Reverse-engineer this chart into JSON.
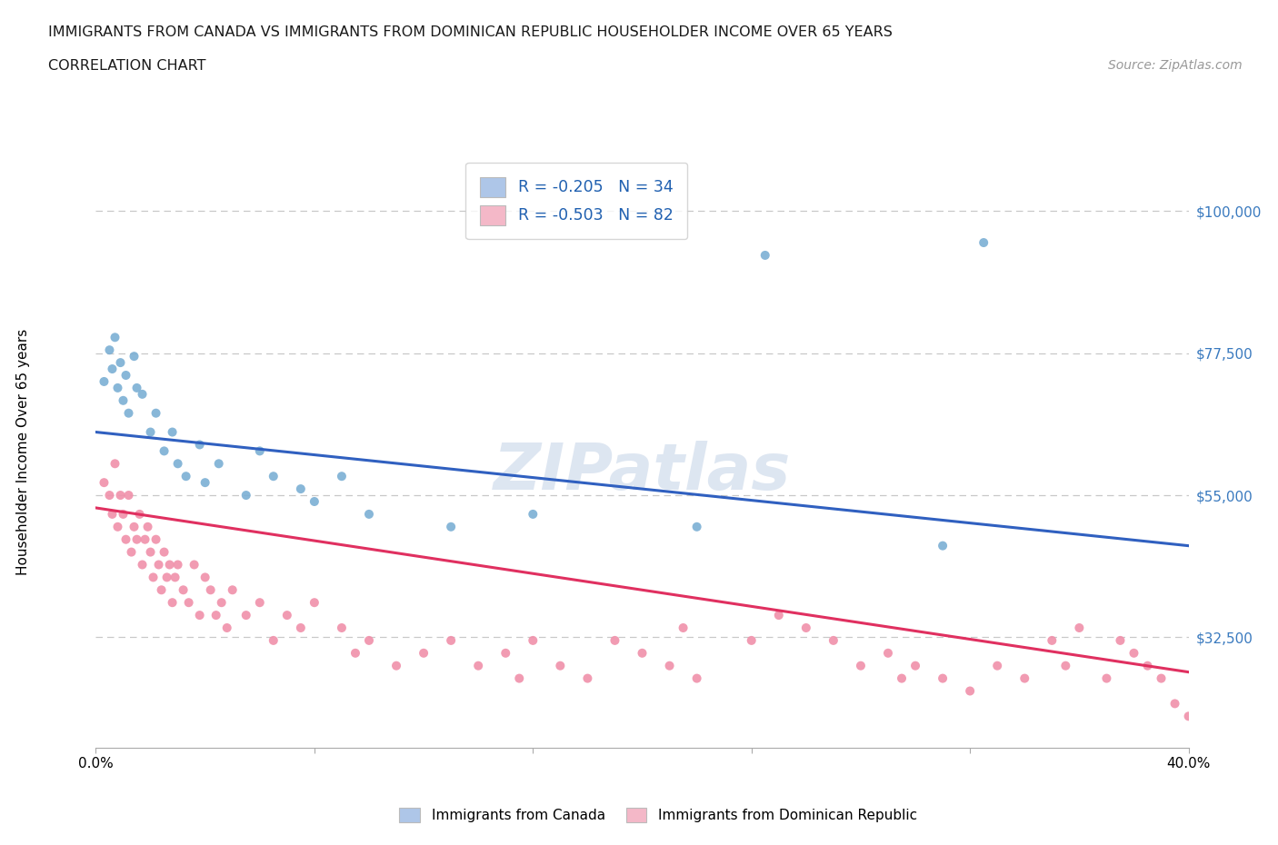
{
  "title_line1": "IMMIGRANTS FROM CANADA VS IMMIGRANTS FROM DOMINICAN REPUBLIC HOUSEHOLDER INCOME OVER 65 YEARS",
  "title_line2": "CORRELATION CHART",
  "source_text": "Source: ZipAtlas.com",
  "ylabel": "Householder Income Over 65 years",
  "background_color": "#ffffff",
  "grid_color": "#c8c8c8",
  "xmin": 0.0,
  "xmax": 0.4,
  "ymin": 15000,
  "ymax": 108000,
  "yticks": [
    32500,
    55000,
    77500,
    100000
  ],
  "ytick_labels": [
    "$32,500",
    "$55,000",
    "$77,500",
    "$100,000"
  ],
  "legend_label1": "R = -0.205   N = 34",
  "legend_label2": "R = -0.503   N = 82",
  "legend_color1": "#aec6e8",
  "legend_color2": "#f4b8c8",
  "scatter_color1": "#7bafd4",
  "scatter_color2": "#f090aa",
  "line_color1": "#3060c0",
  "line_color2": "#e03060",
  "label_canada": "Immigrants from Canada",
  "label_dr": "Immigrants from Dominican Republic",
  "watermark_text": "ZIPatlas",
  "watermark_color": "#ccd9ea",
  "canada_x": [
    0.003,
    0.005,
    0.006,
    0.007,
    0.008,
    0.009,
    0.01,
    0.011,
    0.012,
    0.014,
    0.015,
    0.017,
    0.02,
    0.022,
    0.025,
    0.028,
    0.03,
    0.033,
    0.038,
    0.04,
    0.045,
    0.055,
    0.06,
    0.065,
    0.075,
    0.08,
    0.09,
    0.1,
    0.13,
    0.16,
    0.22,
    0.245,
    0.31,
    0.325
  ],
  "canada_y": [
    73000,
    78000,
    75000,
    80000,
    72000,
    76000,
    70000,
    74000,
    68000,
    77000,
    72000,
    71000,
    65000,
    68000,
    62000,
    65000,
    60000,
    58000,
    63000,
    57000,
    60000,
    55000,
    62000,
    58000,
    56000,
    54000,
    58000,
    52000,
    50000,
    52000,
    50000,
    93000,
    47000,
    95000
  ],
  "dr_x": [
    0.003,
    0.005,
    0.006,
    0.007,
    0.008,
    0.009,
    0.01,
    0.011,
    0.012,
    0.013,
    0.014,
    0.015,
    0.016,
    0.017,
    0.018,
    0.019,
    0.02,
    0.021,
    0.022,
    0.023,
    0.024,
    0.025,
    0.026,
    0.027,
    0.028,
    0.029,
    0.03,
    0.032,
    0.034,
    0.036,
    0.038,
    0.04,
    0.042,
    0.044,
    0.046,
    0.048,
    0.05,
    0.055,
    0.06,
    0.065,
    0.07,
    0.075,
    0.08,
    0.09,
    0.095,
    0.1,
    0.11,
    0.12,
    0.13,
    0.14,
    0.15,
    0.155,
    0.16,
    0.17,
    0.18,
    0.19,
    0.2,
    0.21,
    0.215,
    0.22,
    0.24,
    0.25,
    0.26,
    0.27,
    0.28,
    0.29,
    0.295,
    0.3,
    0.31,
    0.32,
    0.33,
    0.34,
    0.35,
    0.355,
    0.36,
    0.37,
    0.375,
    0.38,
    0.385,
    0.39,
    0.395,
    0.4
  ],
  "dr_y": [
    57000,
    55000,
    52000,
    60000,
    50000,
    55000,
    52000,
    48000,
    55000,
    46000,
    50000,
    48000,
    52000,
    44000,
    48000,
    50000,
    46000,
    42000,
    48000,
    44000,
    40000,
    46000,
    42000,
    44000,
    38000,
    42000,
    44000,
    40000,
    38000,
    44000,
    36000,
    42000,
    40000,
    36000,
    38000,
    34000,
    40000,
    36000,
    38000,
    32000,
    36000,
    34000,
    38000,
    34000,
    30000,
    32000,
    28000,
    30000,
    32000,
    28000,
    30000,
    26000,
    32000,
    28000,
    26000,
    32000,
    30000,
    28000,
    34000,
    26000,
    32000,
    36000,
    34000,
    32000,
    28000,
    30000,
    26000,
    28000,
    26000,
    24000,
    28000,
    26000,
    32000,
    28000,
    34000,
    26000,
    32000,
    30000,
    28000,
    26000,
    22000,
    20000
  ]
}
